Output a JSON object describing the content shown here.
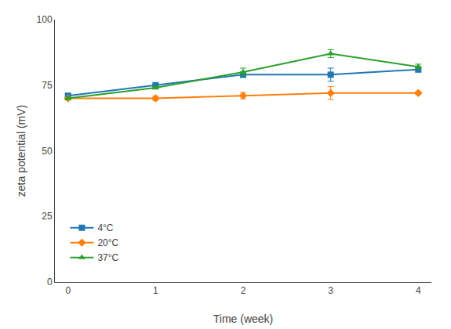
{
  "chart_data": {
    "type": "line",
    "xlabel": "Time (week)",
    "ylabel": "zeta potential (mV)",
    "x": [
      0,
      1,
      2,
      3,
      4
    ],
    "series": [
      {
        "name": "4°C",
        "values": [
          71,
          75,
          79,
          79,
          81
        ],
        "errors": [
          0.5,
          0.5,
          1.0,
          2.5,
          1.0
        ],
        "marker": "square"
      },
      {
        "name": "20°C",
        "values": [
          70,
          70,
          71,
          72,
          72
        ],
        "errors": [
          0.5,
          0.8,
          1.2,
          2.5,
          0.5
        ],
        "marker": "diamond"
      },
      {
        "name": "37°C",
        "values": [
          70,
          74,
          80,
          87,
          82
        ],
        "errors": [
          0.5,
          0.5,
          1.5,
          1.5,
          1.0
        ],
        "marker": "triangle-up"
      }
    ],
    "xlim": [
      -0.15,
      4.15
    ],
    "xticks": [
      0,
      1,
      2,
      3,
      4
    ],
    "ylim": [
      0,
      100
    ],
    "yticks": [
      0,
      25,
      50,
      75,
      100
    ],
    "grid": false,
    "legend": "lower left"
  }
}
